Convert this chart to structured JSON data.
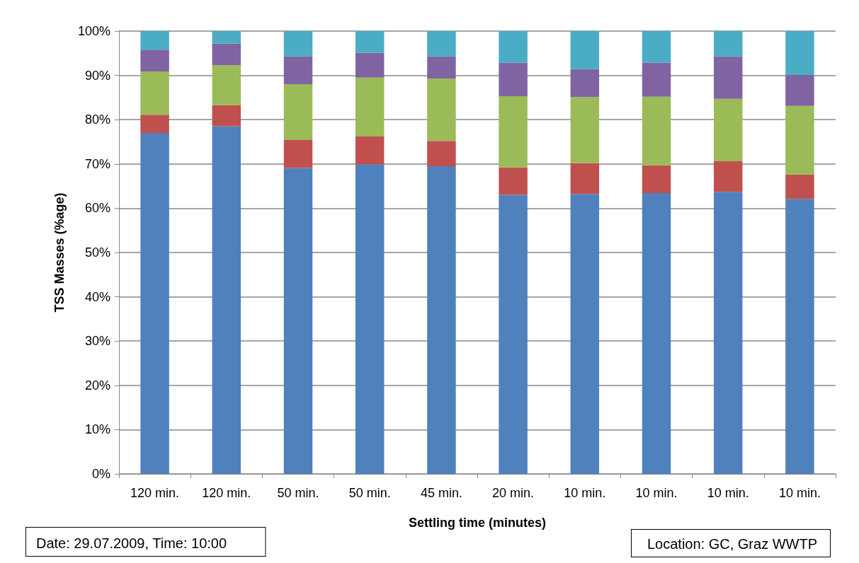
{
  "chart_data": {
    "type": "bar",
    "stacked": true,
    "ylabel": "TSS Masses (%age)",
    "xlabel": "Settling time (minutes)",
    "categories": [
      "120 min.",
      "120 min.",
      "50 min.",
      "50 min.",
      "45 min.",
      "20 min.",
      "10 min.",
      "10 min.",
      "10 min.",
      "10 min."
    ],
    "series": [
      {
        "color": "#4f81bd",
        "values": [
          77.0,
          78.5,
          69.1,
          69.9,
          69.5,
          63.0,
          63.2,
          63.4,
          63.7,
          62.1
        ]
      },
      {
        "color": "#c0504d",
        "values": [
          4.1,
          4.8,
          6.3,
          6.3,
          5.7,
          6.2,
          7.0,
          6.3,
          6.9,
          5.5
        ]
      },
      {
        "color": "#9bbb59",
        "values": [
          9.8,
          9.0,
          12.6,
          13.3,
          14.1,
          16.1,
          14.9,
          15.5,
          14.1,
          15.5
        ]
      },
      {
        "color": "#8064a2",
        "values": [
          4.9,
          4.9,
          6.3,
          5.6,
          5.0,
          7.6,
          6.3,
          7.7,
          9.6,
          7.0
        ]
      },
      {
        "color": "#4bacc6",
        "values": [
          4.2,
          2.8,
          5.7,
          4.9,
          5.7,
          7.1,
          8.6,
          7.1,
          5.7,
          9.9
        ]
      }
    ],
    "ylim": [
      0,
      100
    ],
    "yticks": [
      {
        "value": 0,
        "label": "0%"
      },
      {
        "value": 10,
        "label": "10%"
      },
      {
        "value": 20,
        "label": "20%"
      },
      {
        "value": 30,
        "label": "30%"
      },
      {
        "value": 40,
        "label": "40%"
      },
      {
        "value": 50,
        "label": "50%"
      },
      {
        "value": 60,
        "label": "60%"
      },
      {
        "value": 70,
        "label": "70%"
      },
      {
        "value": 80,
        "label": "80%"
      },
      {
        "value": 90,
        "label": "90%"
      },
      {
        "value": 100,
        "label": "100%"
      }
    ],
    "grid": "y",
    "annotations": [
      "Date: 29.07.2009, Time: 10:00",
      "Location: GC, Graz WWTP"
    ]
  }
}
